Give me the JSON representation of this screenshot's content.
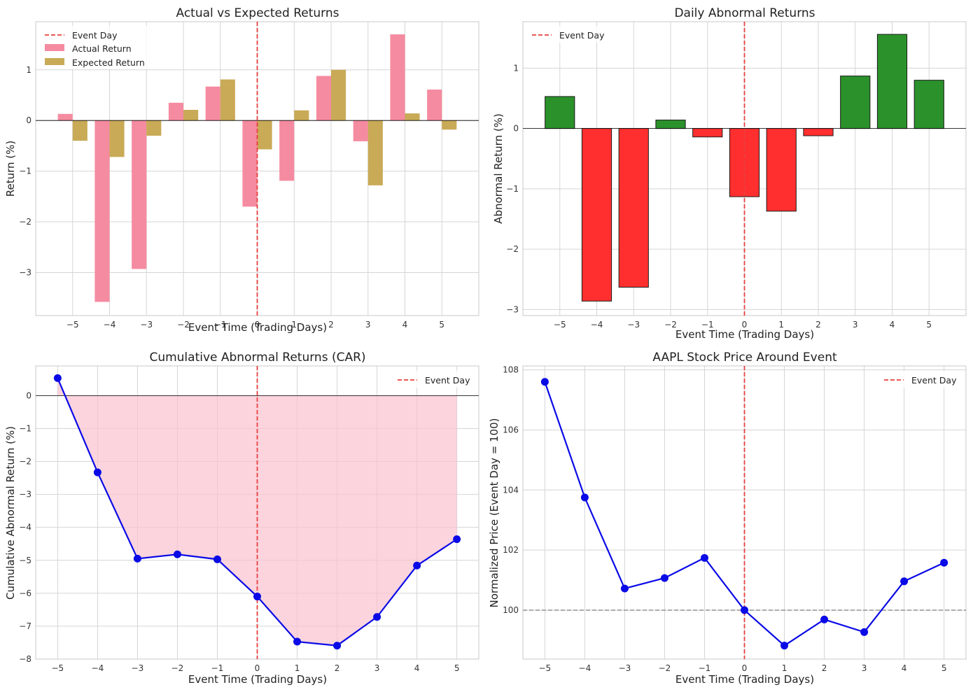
{
  "colors": {
    "actual": "#f58ba0",
    "expected": "#c9aa56",
    "positive": "#2b912b",
    "negative": "#ff2f2f",
    "event_line": "#e8403f",
    "car_line": "#0a0ae6",
    "car_fill": "#f9c2cf",
    "price_line": "#0a0ae6",
    "baseline": "#999999"
  },
  "chart_data": [
    {
      "type": "bar",
      "title": "Actual vs Expected Returns",
      "xlabel": "Event Time (Trading Days)",
      "ylabel": "Return (%)",
      "x": [
        -5,
        -4,
        -3,
        -2,
        -1,
        0,
        1,
        2,
        3,
        4,
        5
      ],
      "xlim": [
        -6,
        6
      ],
      "ylim": [
        -3.85,
        1.95
      ],
      "yticks": [
        1,
        0,
        -1,
        -2,
        -3
      ],
      "series": [
        {
          "name": "Actual Return",
          "values": [
            0.13,
            -3.58,
            -2.93,
            0.35,
            0.67,
            -1.7,
            -1.19,
            0.88,
            -0.41,
            1.7,
            0.61
          ]
        },
        {
          "name": "Expected Return",
          "values": [
            -0.4,
            -0.72,
            -0.3,
            0.21,
            0.81,
            -0.57,
            0.2,
            1.0,
            -1.28,
            0.14,
            -0.18
          ]
        }
      ],
      "legend": [
        "Event Day",
        "Actual Return",
        "Expected Return"
      ],
      "legend_position": "top-left"
    },
    {
      "type": "bar",
      "title": "Daily Abnormal Returns",
      "xlabel": "Event Time (Trading Days)",
      "ylabel": "Abnormal Return (%)",
      "x": [
        -5,
        -4,
        -3,
        -2,
        -1,
        0,
        1,
        2,
        3,
        4,
        5
      ],
      "xlim": [
        -6,
        6
      ],
      "ylim": [
        -3.1,
        1.77
      ],
      "yticks": [
        1,
        0,
        -1,
        -2,
        -3
      ],
      "values": [
        0.53,
        -2.86,
        -2.63,
        0.14,
        -0.14,
        -1.13,
        -1.37,
        -0.12,
        0.87,
        1.56,
        0.8
      ],
      "legend": [
        "Event Day"
      ],
      "legend_position": "top-left"
    },
    {
      "type": "area",
      "title": "Cumulative Abnormal Returns (CAR)",
      "xlabel": "Event Time (Trading Days)",
      "ylabel": "Cumulative Abnormal Return (%)",
      "x": [
        -5,
        -4,
        -3,
        -2,
        -1,
        0,
        1,
        2,
        3,
        4,
        5
      ],
      "xlim": [
        -5.55,
        5.55
      ],
      "ylim": [
        -8,
        0.9
      ],
      "yticks": [
        0,
        -1,
        -2,
        -3,
        -4,
        -5,
        -6,
        -7,
        -8
      ],
      "values": [
        0.53,
        -2.33,
        -4.95,
        -4.82,
        -4.97,
        -6.1,
        -7.47,
        -7.59,
        -6.72,
        -5.16,
        -4.36
      ],
      "legend": [
        "Event Day"
      ],
      "legend_position": "top-right"
    },
    {
      "type": "line",
      "title": "AAPL Stock Price Around Event",
      "xlabel": "Event Time (Trading Days)",
      "ylabel": "Normalized Price (Event Day = 100)",
      "x": [
        -5,
        -4,
        -3,
        -2,
        -1,
        0,
        1,
        2,
        3,
        4,
        5
      ],
      "xlim": [
        -5.55,
        5.55
      ],
      "ylim": [
        98.37,
        108.13
      ],
      "yticks": [
        108,
        106,
        104,
        102,
        100
      ],
      "values": [
        107.6,
        103.75,
        100.72,
        101.07,
        101.74,
        100.0,
        98.82,
        99.69,
        99.27,
        100.96,
        101.58
      ],
      "reference_line": 100,
      "legend": [
        "Event Day"
      ],
      "legend_position": "top-right"
    }
  ]
}
